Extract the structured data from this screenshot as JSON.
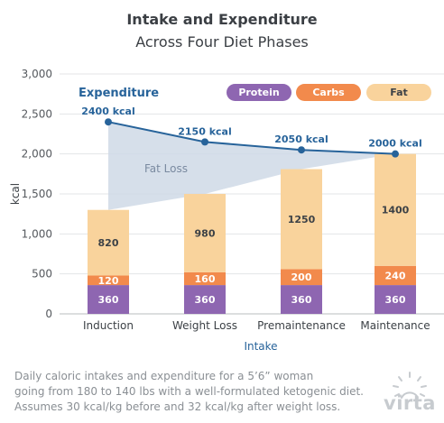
{
  "header": {
    "title": "Intake and Expenditure",
    "subtitle": "Across Four Diet Phases"
  },
  "chart_data": {
    "type": "bar",
    "stacked": true,
    "categories": [
      "Induction",
      "Weight Loss",
      "Premaintenance",
      "Maintenance"
    ],
    "series": [
      {
        "name": "Protein",
        "color": "#8e66b1",
        "values": [
          360,
          360,
          360,
          360
        ]
      },
      {
        "name": "Carbs",
        "color": "#f28a4c",
        "values": [
          120,
          160,
          200,
          240
        ]
      },
      {
        "name": "Fat",
        "color": "#f9d39c",
        "values": [
          820,
          980,
          1250,
          1400
        ]
      }
    ],
    "expenditure": {
      "name": "Expenditure",
      "color": "#27639a",
      "values": [
        2400,
        2150,
        2050,
        2000
      ],
      "labels": [
        "2400 kcal",
        "2150 kcal",
        "2050 kcal",
        "2000 kcal"
      ]
    },
    "gap_label": "Fat Loss",
    "xlabel": "Intake",
    "ylabel": "kcal",
    "ylim": [
      0,
      3000
    ],
    "yticks": [
      0,
      500,
      1000,
      1500,
      2000,
      2500,
      3000
    ],
    "ytick_labels": [
      "0",
      "500",
      "1,000",
      "1,500",
      "2,000",
      "2,500",
      "3,000"
    ],
    "grid": true,
    "legend_placement": "top-right"
  },
  "caption": [
    "Daily caloric intakes and expenditure for a 5’6” woman",
    "going from 180 to 140 lbs with a well-formulated ketogenic diet.",
    "Assumes 30 kcal/kg before and 32 kcal/kg after weight loss."
  ],
  "brand": {
    "name": "virta"
  }
}
